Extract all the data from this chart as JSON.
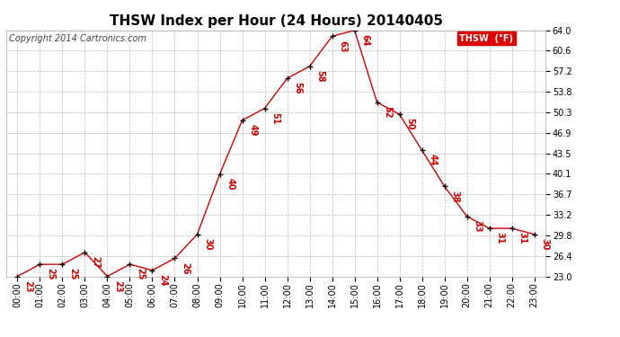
{
  "title": "THSW Index per Hour (24 Hours) 20140405",
  "copyright": "Copyright 2014 Cartronics.com",
  "legend_label": "THSW  (°F)",
  "hours": [
    "00:00",
    "01:00",
    "02:00",
    "03:00",
    "04:00",
    "05:00",
    "06:00",
    "07:00",
    "08:00",
    "09:00",
    "10:00",
    "11:00",
    "12:00",
    "13:00",
    "14:00",
    "15:00",
    "16:00",
    "17:00",
    "18:00",
    "19:00",
    "20:00",
    "21:00",
    "22:00",
    "23:00"
  ],
  "values": [
    23,
    25,
    25,
    27,
    23,
    25,
    24,
    26,
    30,
    40,
    49,
    51,
    56,
    58,
    63,
    64,
    52,
    50,
    44,
    38,
    33,
    31,
    31,
    30
  ],
  "line_color": "#cc0000",
  "marker_color": "#000000",
  "label_color": "#cc0000",
  "bg_color": "#ffffff",
  "grid_color": "#bbbbbb",
  "ylim_min": 23.0,
  "ylim_max": 64.0,
  "yticks": [
    23.0,
    26.4,
    29.8,
    33.2,
    36.7,
    40.1,
    43.5,
    46.9,
    50.3,
    53.8,
    57.2,
    60.6,
    64.0
  ],
  "title_fontsize": 11,
  "copyright_fontsize": 7,
  "label_fontsize": 7,
  "legend_bg": "#dd0000",
  "legend_text_color": "#ffffff",
  "ytick_fontsize": 7,
  "xtick_fontsize": 7
}
